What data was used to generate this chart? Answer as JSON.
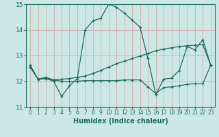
{
  "xlabel": "Humidex (Indice chaleur)",
  "background_color": "#cce8e4",
  "grid_color": "#d9b0b0",
  "line_color": "#1a6b5e",
  "xlim": [
    -0.5,
    23.5
  ],
  "ylim": [
    11,
    15
  ],
  "yticks": [
    11,
    12,
    13,
    14,
    15
  ],
  "xticks": [
    0,
    1,
    2,
    3,
    4,
    5,
    6,
    7,
    8,
    9,
    10,
    11,
    12,
    13,
    14,
    15,
    16,
    17,
    18,
    19,
    20,
    21,
    22,
    23
  ],
  "line1_x": [
    0,
    1,
    2,
    3,
    4,
    5,
    6,
    7,
    8,
    9,
    10,
    11,
    12,
    13,
    14,
    15,
    16,
    17,
    18,
    19,
    20,
    21,
    22,
    23
  ],
  "line1_y": [
    12.62,
    12.08,
    12.1,
    12.0,
    11.4,
    11.82,
    12.1,
    14.0,
    14.35,
    14.45,
    15.0,
    14.88,
    14.65,
    14.38,
    14.1,
    12.88,
    11.48,
    12.08,
    12.12,
    12.42,
    13.35,
    13.22,
    13.62,
    12.62
  ],
  "line2_x": [
    0,
    1,
    2,
    3,
    4,
    5,
    6,
    7,
    8,
    9,
    10,
    11,
    12,
    13,
    14,
    15,
    16,
    17,
    18,
    19,
    20,
    21,
    22,
    23
  ],
  "line2_y": [
    12.55,
    12.08,
    12.15,
    12.05,
    12.08,
    12.1,
    12.15,
    12.2,
    12.3,
    12.42,
    12.55,
    12.68,
    12.78,
    12.88,
    12.98,
    13.08,
    13.18,
    13.25,
    13.3,
    13.35,
    13.38,
    13.4,
    13.42,
    12.62
  ],
  "line3_x": [
    0,
    1,
    2,
    3,
    4,
    5,
    6,
    7,
    8,
    9,
    10,
    11,
    12,
    13,
    14,
    15,
    16,
    17,
    18,
    19,
    20,
    21,
    22,
    23
  ],
  "line3_y": [
    12.55,
    12.08,
    12.1,
    12.05,
    12.0,
    11.98,
    12.0,
    12.02,
    12.02,
    12.02,
    12.02,
    12.02,
    12.05,
    12.05,
    12.05,
    11.78,
    11.52,
    11.75,
    11.78,
    11.82,
    11.88,
    11.9,
    11.9,
    12.62
  ]
}
